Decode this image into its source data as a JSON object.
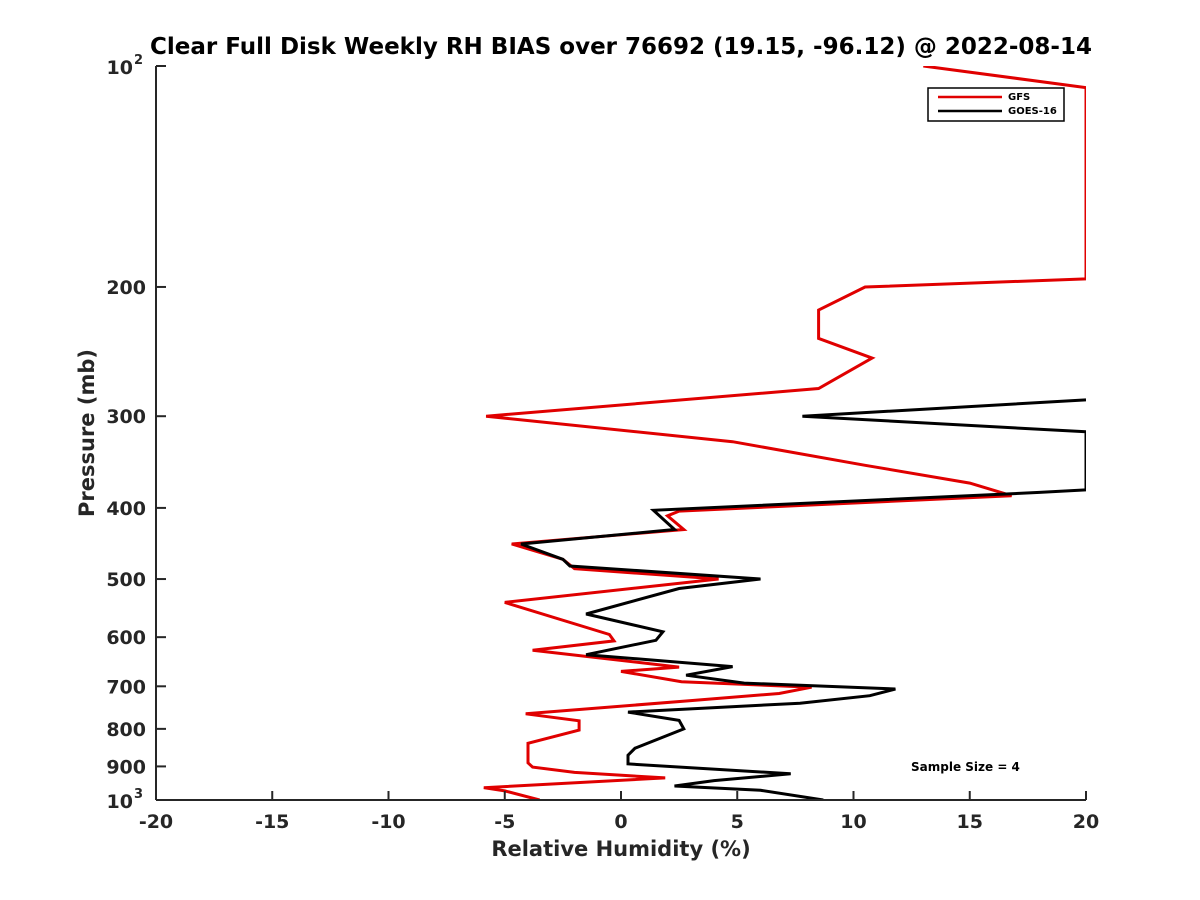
{
  "chart_data": {
    "type": "line",
    "title": "Clear Full Disk Weekly RH BIAS over 76692 (19.15, -96.12) @ 2022-08-14",
    "xlabel": "Relative Humidity (%)",
    "ylabel": "Pressure (mb)",
    "xlim": [
      -20,
      20
    ],
    "ylim": [
      100,
      1000
    ],
    "yscale": "log",
    "y_reversed": true,
    "x_ticks": [
      "-20",
      "-15",
      "-10",
      "-5",
      "0",
      "5",
      "10",
      "15",
      "20"
    ],
    "y_ticks": [
      {
        "value": 100,
        "base": "10",
        "exp": "2"
      },
      {
        "value": 200,
        "label": "200"
      },
      {
        "value": 300,
        "label": "300"
      },
      {
        "value": 400,
        "label": "400"
      },
      {
        "value": 500,
        "label": "500"
      },
      {
        "value": 600,
        "label": "600"
      },
      {
        "value": 700,
        "label": "700"
      },
      {
        "value": 800,
        "label": "800"
      },
      {
        "value": 900,
        "label": "900"
      },
      {
        "value": 1000,
        "base": "10",
        "exp": "3"
      }
    ],
    "legend_position": "top-right",
    "annotation": "Sample Size = 4",
    "series": [
      {
        "name": "GFS",
        "color": "#e00000",
        "points": [
          [
            13,
            100
          ],
          [
            20,
            107
          ],
          [
            20,
            195
          ],
          [
            10.5,
            200
          ],
          [
            8.5,
            215
          ],
          [
            8.5,
            235
          ],
          [
            10.8,
            250
          ],
          [
            8.5,
            275
          ],
          [
            -5.8,
            300
          ],
          [
            4.8,
            325
          ],
          [
            10.5,
            350
          ],
          [
            15.0,
            370
          ],
          [
            16.8,
            385
          ],
          [
            2.5,
            404
          ],
          [
            2.0,
            410
          ],
          [
            2.7,
            428
          ],
          [
            -4.7,
            448
          ],
          [
            -2.5,
            470
          ],
          [
            -2.0,
            484
          ],
          [
            4.2,
            500
          ],
          [
            -5.0,
            538
          ],
          [
            -0.5,
            595
          ],
          [
            -0.3,
            607
          ],
          [
            -3.8,
            625
          ],
          [
            2.5,
            659
          ],
          [
            0.0,
            668
          ],
          [
            2.6,
            690
          ],
          [
            8.2,
            702
          ],
          [
            6.8,
            716
          ],
          [
            3.0,
            732
          ],
          [
            -4.1,
            763
          ],
          [
            -1.8,
            780
          ],
          [
            -1.8,
            803
          ],
          [
            -4.0,
            837
          ],
          [
            -4.0,
            890
          ],
          [
            -3.8,
            902
          ],
          [
            -2.0,
            917
          ],
          [
            1.9,
            933
          ],
          [
            -5.9,
            962
          ],
          [
            -5.0,
            972
          ],
          [
            -3.5,
            1000
          ]
        ]
      },
      {
        "name": "GOES-16",
        "color": "#000000",
        "points": [
          [
            20,
            285
          ],
          [
            7.8,
            300
          ],
          [
            20,
            315
          ],
          [
            20,
            378
          ],
          [
            18.0,
            381
          ],
          [
            1.4,
            403
          ],
          [
            2.3,
            428
          ],
          [
            -4.3,
            448
          ],
          [
            -2.5,
            470
          ],
          [
            -2.2,
            480
          ],
          [
            6.0,
            500
          ],
          [
            2.5,
            515
          ],
          [
            -1.5,
            558
          ],
          [
            1.8,
            590
          ],
          [
            1.5,
            606
          ],
          [
            -1.5,
            634
          ],
          [
            4.8,
            658
          ],
          [
            2.8,
            676
          ],
          [
            5.3,
            693
          ],
          [
            11.8,
            706
          ],
          [
            10.7,
            721
          ],
          [
            7.7,
            738
          ],
          [
            0.3,
            759
          ],
          [
            2.5,
            779
          ],
          [
            2.7,
            800
          ],
          [
            0.6,
            850
          ],
          [
            0.3,
            869
          ],
          [
            0.3,
            893
          ],
          [
            7.3,
            921
          ],
          [
            4.0,
            941
          ],
          [
            2.3,
            957
          ],
          [
            6.0,
            970
          ],
          [
            8.7,
            1000
          ]
        ]
      }
    ]
  }
}
